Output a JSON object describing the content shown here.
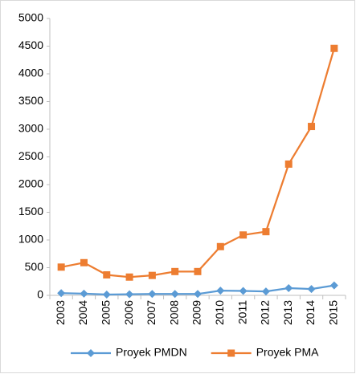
{
  "chart_data": {
    "type": "line",
    "categories": [
      "2003",
      "2004",
      "2005",
      "2006",
      "2007",
      "2008",
      "2009",
      "2010",
      "2011",
      "2012",
      "2013",
      "2014",
      "2015"
    ],
    "series": [
      {
        "name": "Proyek PMDN",
        "color": "#5b9bd5",
        "marker": "diamond",
        "values": [
          40,
          30,
          15,
          20,
          25,
          25,
          25,
          85,
          80,
          70,
          130,
          115,
          180
        ]
      },
      {
        "name": "Proyek PMA",
        "color": "#ed7d31",
        "marker": "square",
        "values": [
          510,
          590,
          370,
          330,
          360,
          430,
          430,
          880,
          1090,
          1150,
          2370,
          3050,
          4460
        ]
      }
    ],
    "ylim": [
      0,
      5000
    ],
    "yticks": [
      0,
      500,
      1000,
      1500,
      2000,
      2500,
      3000,
      3500,
      4000,
      4500,
      5000
    ],
    "grid": false,
    "legend": "bottom"
  }
}
